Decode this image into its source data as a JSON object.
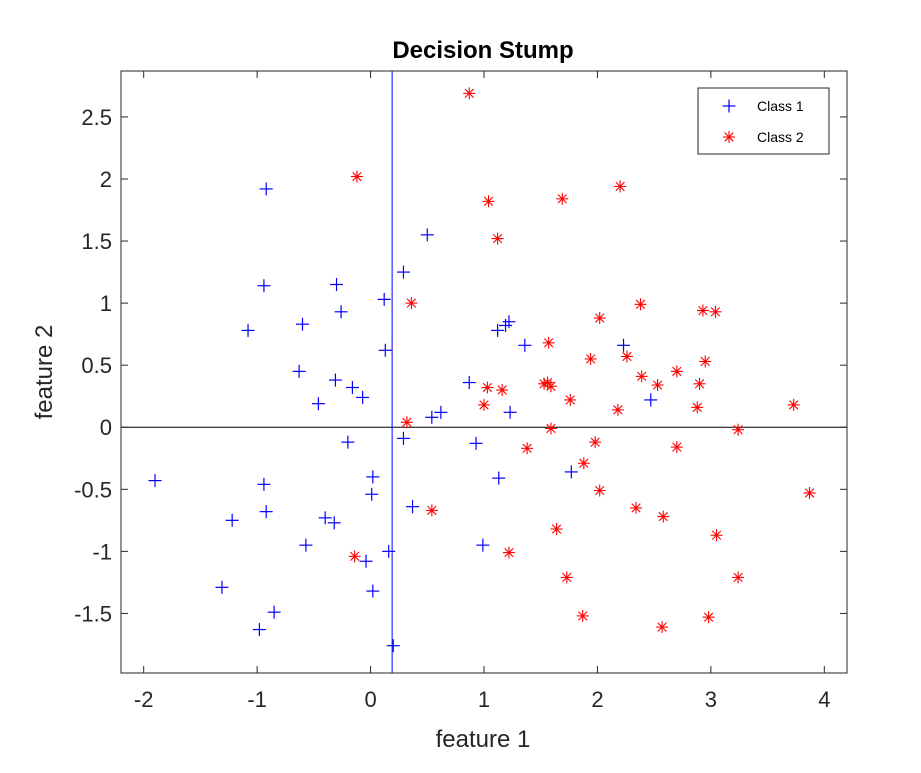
{
  "chart_data": {
    "type": "scatter",
    "title": "Decision Stump",
    "xlabel": "feature 1",
    "ylabel": "feature 2",
    "xlim": [
      -2.2,
      4.2
    ],
    "ylim": [
      -1.98,
      2.87
    ],
    "xticks": [
      -2,
      -1,
      0,
      1,
      2,
      3,
      4
    ],
    "yticks": [
      -1.5,
      -1,
      -0.5,
      0,
      0.5,
      1,
      1.5,
      2,
      2.5
    ],
    "xtick_labels": [
      "-2",
      "-1",
      "0",
      "1",
      "2",
      "3",
      "4"
    ],
    "ytick_labels": [
      "-1.5",
      "-1",
      "-0.5",
      "0",
      "0.5",
      "1",
      "1.5",
      "2",
      "2.5"
    ],
    "grid": false,
    "legend_position": "top-right",
    "decision_boundary": {
      "x": 0.19,
      "y": 0.0,
      "vertical_color": "#0000ff",
      "horizontal_color": "#000000"
    },
    "series": [
      {
        "name": "Class 1",
        "marker": "plus",
        "color": "#0000ff",
        "points": [
          [
            -0.92,
            1.92
          ],
          [
            -0.94,
            1.14
          ],
          [
            -1.08,
            0.78
          ],
          [
            -0.6,
            0.83
          ],
          [
            -0.3,
            1.15
          ],
          [
            -0.26,
            0.93
          ],
          [
            0.12,
            1.03
          ],
          [
            0.29,
            1.25
          ],
          [
            0.5,
            1.55
          ],
          [
            -0.63,
            0.45
          ],
          [
            -0.31,
            0.38
          ],
          [
            -0.46,
            0.19
          ],
          [
            -0.16,
            0.32
          ],
          [
            -0.07,
            0.24
          ],
          [
            0.13,
            0.62
          ],
          [
            0.54,
            0.08
          ],
          [
            0.62,
            0.12
          ],
          [
            0.87,
            0.36
          ],
          [
            1.12,
            0.78
          ],
          [
            1.19,
            0.82
          ],
          [
            1.22,
            0.85
          ],
          [
            1.36,
            0.66
          ],
          [
            1.23,
            0.12
          ],
          [
            2.23,
            0.66
          ],
          [
            2.47,
            0.22
          ],
          [
            -0.2,
            -0.12
          ],
          [
            0.29,
            -0.09
          ],
          [
            0.93,
            -0.13
          ],
          [
            1.13,
            -0.41
          ],
          [
            1.77,
            -0.36
          ],
          [
            -1.9,
            -0.43
          ],
          [
            -0.94,
            -0.46
          ],
          [
            -0.92,
            -0.68
          ],
          [
            -1.22,
            -0.75
          ],
          [
            0.02,
            -0.4
          ],
          [
            0.01,
            -0.54
          ],
          [
            0.37,
            -0.64
          ],
          [
            -0.4,
            -0.73
          ],
          [
            -0.32,
            -0.77
          ],
          [
            -0.57,
            -0.95
          ],
          [
            0.16,
            -1.0
          ],
          [
            -0.04,
            -1.08
          ],
          [
            0.99,
            -0.95
          ],
          [
            -1.31,
            -1.29
          ],
          [
            0.02,
            -1.32
          ],
          [
            -0.85,
            -1.49
          ],
          [
            -0.98,
            -1.63
          ],
          [
            0.2,
            -1.76
          ]
        ]
      },
      {
        "name": "Class 2",
        "marker": "asterisk",
        "color": "#ff0000",
        "points": [
          [
            0.87,
            2.69
          ],
          [
            -0.12,
            2.02
          ],
          [
            1.04,
            1.82
          ],
          [
            1.12,
            1.52
          ],
          [
            1.69,
            1.84
          ],
          [
            2.2,
            1.94
          ],
          [
            0.36,
            1.0
          ],
          [
            2.02,
            0.88
          ],
          [
            2.38,
            0.99
          ],
          [
            2.93,
            0.94
          ],
          [
            3.04,
            0.93
          ],
          [
            1.57,
            0.68
          ],
          [
            1.94,
            0.55
          ],
          [
            2.26,
            0.57
          ],
          [
            2.95,
            0.53
          ],
          [
            2.39,
            0.41
          ],
          [
            2.7,
            0.45
          ],
          [
            2.53,
            0.34
          ],
          [
            2.9,
            0.35
          ],
          [
            1.03,
            0.32
          ],
          [
            1.16,
            0.3
          ],
          [
            1.53,
            0.35
          ],
          [
            1.56,
            0.36
          ],
          [
            1.59,
            0.33
          ],
          [
            1.76,
            0.22
          ],
          [
            1.0,
            0.18
          ],
          [
            2.18,
            0.14
          ],
          [
            2.88,
            0.16
          ],
          [
            3.73,
            0.18
          ],
          [
            0.32,
            0.04
          ],
          [
            1.59,
            -0.01
          ],
          [
            1.98,
            -0.12
          ],
          [
            2.7,
            -0.16
          ],
          [
            3.24,
            -0.02
          ],
          [
            1.38,
            -0.17
          ],
          [
            1.88,
            -0.29
          ],
          [
            2.02,
            -0.51
          ],
          [
            3.87,
            -0.53
          ],
          [
            0.54,
            -0.67
          ],
          [
            2.34,
            -0.65
          ],
          [
            2.58,
            -0.72
          ],
          [
            1.64,
            -0.82
          ],
          [
            3.05,
            -0.87
          ],
          [
            -0.14,
            -1.04
          ],
          [
            1.22,
            -1.01
          ],
          [
            1.73,
            -1.21
          ],
          [
            3.24,
            -1.21
          ],
          [
            1.87,
            -1.52
          ],
          [
            2.98,
            -1.53
          ],
          [
            2.57,
            -1.61
          ]
        ]
      }
    ]
  }
}
